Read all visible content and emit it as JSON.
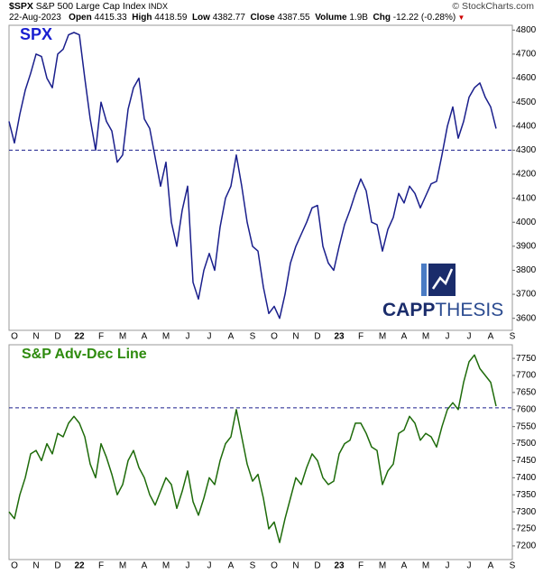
{
  "header": {
    "symbol": "$SPX",
    "name": "S&P 500 Large Cap Index",
    "exchange": "INDX",
    "credit": "© StockCharts.com",
    "date": "22-Aug-2023",
    "quote": [
      {
        "label": "Open",
        "value": "4415.33"
      },
      {
        "label": "High",
        "value": "4418.59"
      },
      {
        "label": "Low",
        "value": "4382.77"
      },
      {
        "label": "Close",
        "value": "4387.55"
      },
      {
        "label": "Volume",
        "value": "1.9B"
      },
      {
        "label": "Chg",
        "value": "-12.22 (-0.28%)"
      }
    ]
  },
  "logo": {
    "part1": "CAPP",
    "part2": "THESIS"
  },
  "chart_data": [
    {
      "type": "line",
      "title": "SPX",
      "color": "#1a1f8c",
      "title_color": "#1a1fd0",
      "categories": [
        null,
        "O",
        null,
        null,
        null,
        "N",
        null,
        null,
        null,
        "D",
        null,
        null,
        null,
        "22",
        null,
        null,
        null,
        "F",
        null,
        null,
        null,
        "M",
        null,
        null,
        null,
        "A",
        null,
        null,
        null,
        "M",
        null,
        null,
        null,
        "J",
        null,
        null,
        null,
        "J",
        null,
        null,
        null,
        "A",
        null,
        null,
        null,
        "S",
        null,
        null,
        null,
        "O",
        null,
        null,
        null,
        "N",
        null,
        null,
        null,
        "D",
        null,
        null,
        null,
        "23",
        null,
        null,
        null,
        "F",
        null,
        null,
        null,
        "M",
        null,
        null,
        null,
        "A",
        null,
        null,
        null,
        "M",
        null,
        null,
        null,
        "J",
        null,
        null,
        null,
        "J",
        null,
        null,
        null,
        "A",
        null,
        null,
        null,
        "S"
      ],
      "values": [
        4420,
        4330,
        4450,
        4550,
        4620,
        4700,
        4690,
        4600,
        4560,
        4700,
        4720,
        4780,
        4790,
        4780,
        4600,
        4430,
        4300,
        4500,
        4420,
        4380,
        4250,
        4280,
        4470,
        4560,
        4600,
        4430,
        4390,
        4270,
        4150,
        4250,
        4000,
        3900,
        4050,
        4150,
        3750,
        3680,
        3800,
        3870,
        3800,
        3980,
        4100,
        4150,
        4280,
        4150,
        4000,
        3900,
        3880,
        3730,
        3620,
        3650,
        3600,
        3700,
        3830,
        3900,
        3950,
        4000,
        4060,
        4070,
        3900,
        3830,
        3800,
        3900,
        3990,
        4050,
        4120,
        4180,
        4130,
        4000,
        3990,
        3880,
        3970,
        4020,
        4120,
        4080,
        4150,
        4120,
        4060,
        4110,
        4160,
        4170,
        4280,
        4400,
        4480,
        4350,
        4420,
        4520,
        4560,
        4580,
        4520,
        4480,
        4390,
        null,
        null,
        null
      ],
      "ylim": [
        3550,
        4820
      ],
      "yticks": [
        3600,
        3700,
        3800,
        3900,
        4000,
        4100,
        4200,
        4300,
        4400,
        4500,
        4600,
        4700,
        4800
      ],
      "hline": 4300
    },
    {
      "type": "line",
      "title": "S&P Adv-Dec Line",
      "color": "#1e6b0a",
      "title_color": "#2e8b0e",
      "categories": [
        null,
        "O",
        null,
        null,
        null,
        "N",
        null,
        null,
        null,
        "D",
        null,
        null,
        null,
        "22",
        null,
        null,
        null,
        "F",
        null,
        null,
        null,
        "M",
        null,
        null,
        null,
        "A",
        null,
        null,
        null,
        "M",
        null,
        null,
        null,
        "J",
        null,
        null,
        null,
        "J",
        null,
        null,
        null,
        "A",
        null,
        null,
        null,
        "S",
        null,
        null,
        null,
        "O",
        null,
        null,
        null,
        "N",
        null,
        null,
        null,
        "D",
        null,
        null,
        null,
        "23",
        null,
        null,
        null,
        "F",
        null,
        null,
        null,
        "M",
        null,
        null,
        null,
        "A",
        null,
        null,
        null,
        "M",
        null,
        null,
        null,
        "J",
        null,
        null,
        null,
        "J",
        null,
        null,
        null,
        "A",
        null,
        null,
        null,
        "S"
      ],
      "values": [
        7300,
        7280,
        7350,
        7400,
        7470,
        7480,
        7450,
        7500,
        7470,
        7530,
        7520,
        7560,
        7580,
        7560,
        7520,
        7440,
        7400,
        7500,
        7460,
        7410,
        7350,
        7380,
        7450,
        7480,
        7430,
        7400,
        7350,
        7320,
        7360,
        7400,
        7380,
        7310,
        7360,
        7420,
        7330,
        7290,
        7340,
        7400,
        7380,
        7450,
        7500,
        7520,
        7600,
        7520,
        7440,
        7390,
        7410,
        7340,
        7250,
        7270,
        7210,
        7280,
        7340,
        7400,
        7380,
        7430,
        7470,
        7450,
        7400,
        7380,
        7390,
        7470,
        7500,
        7510,
        7560,
        7560,
        7530,
        7490,
        7480,
        7380,
        7420,
        7440,
        7530,
        7540,
        7580,
        7560,
        7510,
        7530,
        7520,
        7490,
        7550,
        7600,
        7620,
        7600,
        7680,
        7740,
        7760,
        7720,
        7700,
        7680,
        7610,
        null,
        null,
        null
      ],
      "ylim": [
        7160,
        7790
      ],
      "yticks": [
        7200,
        7250,
        7300,
        7350,
        7400,
        7450,
        7500,
        7550,
        7600,
        7650,
        7700,
        7750
      ],
      "hline": 7605
    }
  ]
}
